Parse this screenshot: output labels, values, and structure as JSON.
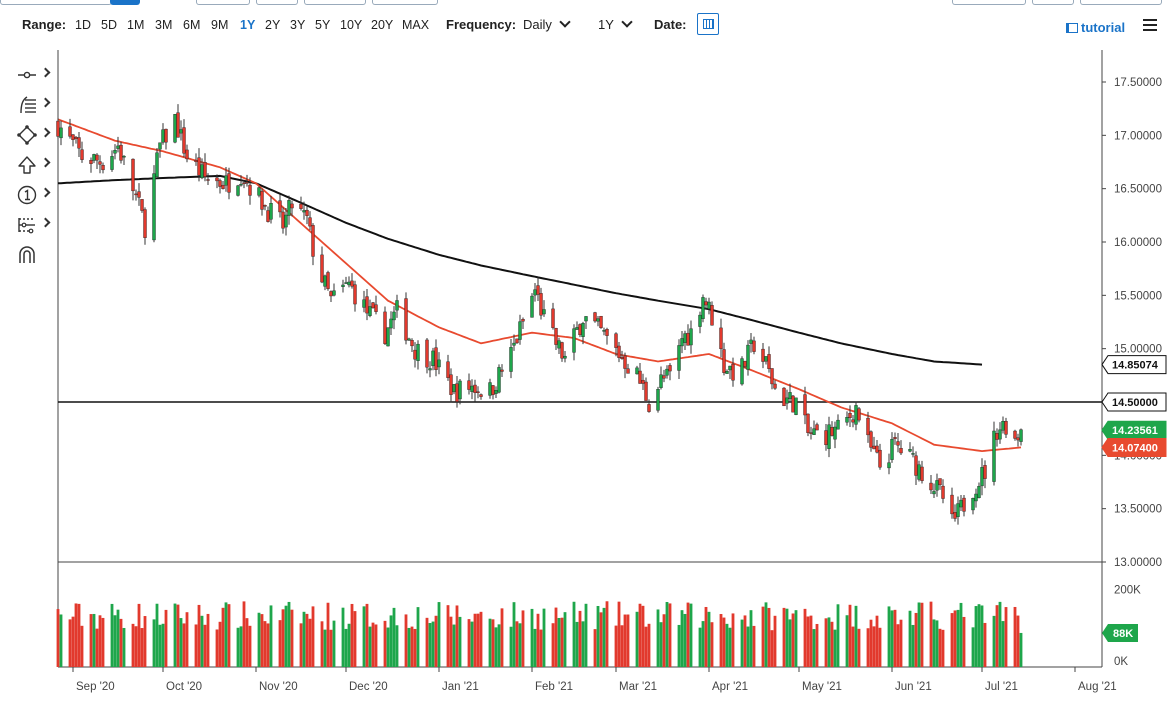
{
  "toolbar": {
    "range_label": "Range:",
    "ranges": [
      "1D",
      "5D",
      "1M",
      "3M",
      "6M",
      "9M",
      "1Y",
      "2Y",
      "3Y",
      "5Y",
      "10Y",
      "20Y",
      "MAX"
    ],
    "active_range": "1Y",
    "frequency_label": "Frequency:",
    "frequency_value": "Daily",
    "period_value": "1Y",
    "date_label": "Date:",
    "tutorial_label": "tutorial"
  },
  "tool_icons": [
    "crosshair-icon",
    "fibonacci-icon",
    "shape-icon",
    "arrow-icon",
    "annotation-icon",
    "measure-icon",
    "magnet-icon"
  ],
  "colors": {
    "up": "#1ea64b",
    "down": "#e2392d",
    "sma_fast": "#e84a2f",
    "sma_slow": "#111111",
    "accent": "#1a73c8"
  },
  "chart_data": {
    "type": "candlestick",
    "frequency": "Daily",
    "ylim": [
      13.0,
      17.8
    ],
    "y_ticks": [
      "17.50000",
      "17.00000",
      "16.50000",
      "16.00000",
      "15.50000",
      "15.00000",
      "14.50000",
      "14.00000",
      "13.50000",
      "13.00000"
    ],
    "x_ticks": [
      "Sep '20",
      "Oct '20",
      "Nov '20",
      "Dec '20",
      "Jan '21",
      "Feb '21",
      "Mar '21",
      "Apr '21",
      "May '21",
      "Jun '21",
      "Jul '21",
      "Aug '21"
    ],
    "x_range": [
      "2020-08-27",
      "2021-08-10"
    ],
    "horizontal_line": {
      "value": 14.5,
      "label": "14.50000"
    },
    "price_tags": [
      {
        "value": 14.85074,
        "label": "14.85074",
        "style": "sma_slow"
      },
      {
        "value": 14.5,
        "label": "14.50000",
        "style": "sma_slow"
      },
      {
        "value": 14.23561,
        "label": "14.23561",
        "style": "up"
      },
      {
        "value": 14.074,
        "label": "14.07400",
        "style": "sma_fast"
      }
    ],
    "price_anchors": [
      [
        "2020-08-27",
        17.1
      ],
      [
        "2020-09-04",
        16.8
      ],
      [
        "2020-09-11",
        16.75
      ],
      [
        "2020-09-16",
        16.9
      ],
      [
        "2020-09-21",
        16.5
      ],
      [
        "2020-09-25",
        16.15
      ],
      [
        "2020-09-30",
        16.9
      ],
      [
        "2020-10-05",
        17.15
      ],
      [
        "2020-10-09",
        16.8
      ],
      [
        "2020-10-15",
        16.6
      ],
      [
        "2020-10-22",
        16.55
      ],
      [
        "2020-10-27",
        16.65
      ],
      [
        "2020-11-05",
        16.3
      ],
      [
        "2020-11-10",
        16.15
      ],
      [
        "2020-11-13",
        16.35
      ],
      [
        "2020-11-18",
        16.2
      ],
      [
        "2020-11-21",
        15.8
      ],
      [
        "2020-11-26",
        15.45
      ],
      [
        "2020-12-02",
        15.6
      ],
      [
        "2020-12-08",
        15.35
      ],
      [
        "2020-12-14",
        15.15
      ],
      [
        "2020-12-18",
        15.35
      ],
      [
        "2020-12-24",
        15.0
      ],
      [
        "2020-12-30",
        14.9
      ],
      [
        "2021-01-06",
        14.6
      ],
      [
        "2021-01-12",
        14.65
      ],
      [
        "2021-01-18",
        14.6
      ],
      [
        "2021-01-25",
        14.95
      ],
      [
        "2021-02-02",
        15.55
      ],
      [
        "2021-02-06",
        15.2
      ],
      [
        "2021-02-12",
        14.9
      ],
      [
        "2021-02-18",
        15.3
      ],
      [
        "2021-02-24",
        15.15
      ],
      [
        "2021-03-02",
        14.95
      ],
      [
        "2021-03-08",
        14.75
      ],
      [
        "2021-03-12",
        14.5
      ],
      [
        "2021-03-16",
        14.7
      ],
      [
        "2021-03-20",
        14.75
      ],
      [
        "2021-03-23",
        15.1
      ],
      [
        "2021-03-26",
        15.15
      ],
      [
        "2021-03-30",
        15.5
      ],
      [
        "2021-04-02",
        15.3
      ],
      [
        "2021-04-06",
        14.85
      ],
      [
        "2021-04-11",
        14.75
      ],
      [
        "2021-04-16",
        15.05
      ],
      [
        "2021-04-20",
        14.85
      ],
      [
        "2021-04-24",
        14.55
      ],
      [
        "2021-04-30",
        14.5
      ],
      [
        "2021-05-04",
        14.2
      ],
      [
        "2021-05-10",
        14.2
      ],
      [
        "2021-05-15",
        14.25
      ],
      [
        "2021-05-20",
        14.45
      ],
      [
        "2021-05-24",
        14.1
      ],
      [
        "2021-05-28",
        13.9
      ],
      [
        "2021-06-02",
        14.1
      ],
      [
        "2021-06-08",
        13.95
      ],
      [
        "2021-06-14",
        13.75
      ],
      [
        "2021-06-18",
        13.6
      ],
      [
        "2021-06-21",
        13.35
      ],
      [
        "2021-06-24",
        13.5
      ],
      [
        "2021-06-28",
        13.7
      ],
      [
        "2021-07-02",
        13.85
      ],
      [
        "2021-07-06",
        14.25
      ],
      [
        "2021-07-09",
        14.3
      ],
      [
        "2021-07-12",
        14.15
      ],
      [
        "2021-07-14",
        14.24
      ]
    ],
    "sma_fast_anchors": [
      [
        "2020-08-27",
        17.15
      ],
      [
        "2020-09-15",
        16.95
      ],
      [
        "2020-10-01",
        16.85
      ],
      [
        "2020-10-20",
        16.7
      ],
      [
        "2020-11-01",
        16.55
      ],
      [
        "2020-11-15",
        16.2
      ],
      [
        "2020-12-01",
        15.8
      ],
      [
        "2020-12-15",
        15.45
      ],
      [
        "2021-01-01",
        15.2
      ],
      [
        "2021-01-15",
        15.05
      ],
      [
        "2021-02-01",
        15.15
      ],
      [
        "2021-02-15",
        15.1
      ],
      [
        "2021-03-01",
        14.95
      ],
      [
        "2021-03-15",
        14.88
      ],
      [
        "2021-04-01",
        14.95
      ],
      [
        "2021-04-15",
        14.8
      ],
      [
        "2021-05-01",
        14.62
      ],
      [
        "2021-05-15",
        14.45
      ],
      [
        "2021-06-01",
        14.3
      ],
      [
        "2021-06-15",
        14.1
      ],
      [
        "2021-07-01",
        14.04
      ],
      [
        "2021-07-14",
        14.074
      ]
    ],
    "sma_slow_anchors": [
      [
        "2020-08-27",
        16.55
      ],
      [
        "2020-09-15",
        16.58
      ],
      [
        "2020-10-01",
        16.6
      ],
      [
        "2020-10-20",
        16.62
      ],
      [
        "2020-11-01",
        16.55
      ],
      [
        "2020-11-15",
        16.38
      ],
      [
        "2020-12-01",
        16.18
      ],
      [
        "2020-12-15",
        16.03
      ],
      [
        "2021-01-01",
        15.88
      ],
      [
        "2021-01-15",
        15.78
      ],
      [
        "2021-02-01",
        15.68
      ],
      [
        "2021-02-15",
        15.6
      ],
      [
        "2021-03-01",
        15.52
      ],
      [
        "2021-03-15",
        15.45
      ],
      [
        "2021-04-01",
        15.37
      ],
      [
        "2021-04-15",
        15.27
      ],
      [
        "2021-05-01",
        15.15
      ],
      [
        "2021-05-15",
        15.05
      ],
      [
        "2021-06-01",
        14.95
      ],
      [
        "2021-06-15",
        14.88
      ],
      [
        "2021-07-01",
        14.85074
      ]
    ],
    "volume": {
      "ylim": [
        0,
        230000
      ],
      "ticks": [
        "200K",
        "0K"
      ],
      "last_label": "88K",
      "last_value": 88000
    }
  }
}
